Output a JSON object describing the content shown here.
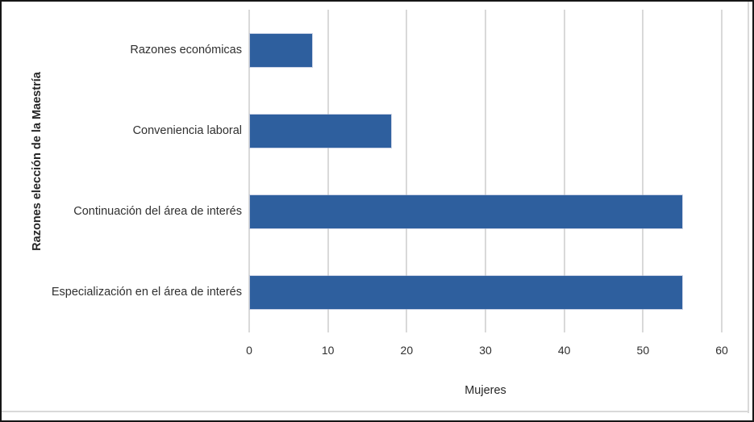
{
  "chart_data": {
    "type": "bar",
    "orientation": "horizontal",
    "categories": [
      "Razones económicas",
      "Conveniencia laboral",
      "Continuación del área de interés",
      "Especialización en el área de interés"
    ],
    "values": [
      8,
      18,
      55,
      55
    ],
    "title": "",
    "xlabel": "Mujeres",
    "ylabel": "Razones elección de la Maestría",
    "xlim": [
      0,
      60
    ],
    "xticks": [
      0,
      10,
      20,
      30,
      40,
      50,
      60
    ],
    "grid": "vertical",
    "legend": "none",
    "bar_color": "#2E5F9E",
    "gridline_color": "#D9D9D9",
    "text_color": "#303030",
    "frame_border_color": "#161616",
    "chart_border_color": "#D9D9D9"
  }
}
